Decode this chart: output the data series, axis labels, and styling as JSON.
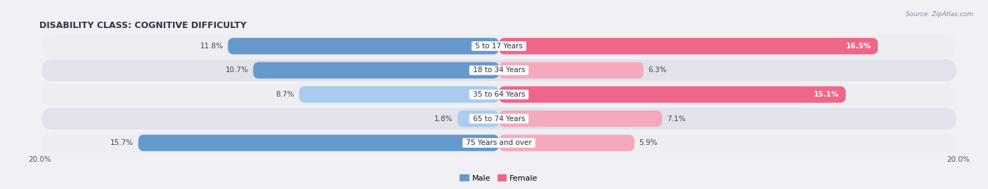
{
  "title": "DISABILITY CLASS: COGNITIVE DIFFICULTY",
  "source_text": "Source: ZipAtlas.com",
  "categories": [
    "5 to 17 Years",
    "18 to 34 Years",
    "35 to 64 Years",
    "65 to 74 Years",
    "75 Years and over"
  ],
  "male_values": [
    11.8,
    10.7,
    8.7,
    1.8,
    15.7
  ],
  "female_values": [
    16.5,
    6.3,
    15.1,
    7.1,
    5.9
  ],
  "max_val": 20.0,
  "male_color_strong": "#6699cc",
  "male_color_light": "#aaccee",
  "female_color_strong": "#ee6688",
  "female_color_light": "#f5aabb",
  "row_bg_color_odd": "#ededf2",
  "row_bg_color_even": "#e2e2ea",
  "fig_bg": "#f0f0f5",
  "title_fontsize": 9,
  "label_fontsize": 7.5,
  "value_fontsize": 7.5,
  "axis_label_fontsize": 7.5,
  "legend_fontsize": 8,
  "color_threshold": 10.0
}
